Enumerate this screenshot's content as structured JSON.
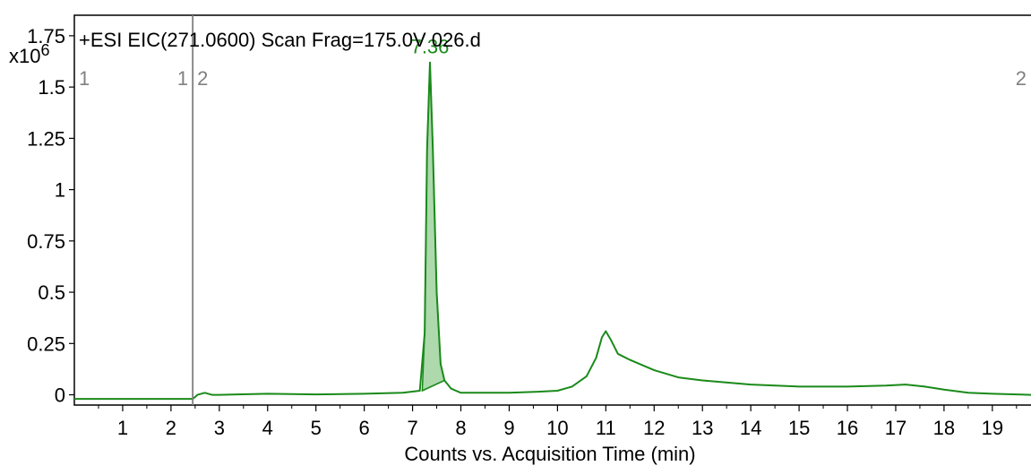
{
  "chart_data": {
    "type": "line",
    "title": "+ESI EIC(271.0600) Scan Frag=175.0V 026.d",
    "xlabel": "Counts vs. Acquisition Time (min)",
    "ylabel": "",
    "y_multiplier": "x10",
    "y_multiplier_exp": "6",
    "xlim": [
      0,
      19.8
    ],
    "ylim": [
      -0.05,
      1.85
    ],
    "x_ticks": [
      1,
      2,
      3,
      4,
      5,
      6,
      7,
      8,
      9,
      10,
      11,
      12,
      13,
      14,
      15,
      16,
      17,
      18,
      19
    ],
    "y_ticks": [
      0,
      0.25,
      0.5,
      0.75,
      1,
      1.25,
      1.5,
      1.75
    ],
    "x_tick_labels": [
      "1",
      "2",
      "3",
      "4",
      "5",
      "6",
      "7",
      "8",
      "9",
      "10",
      "11",
      "12",
      "13",
      "14",
      "15",
      "16",
      "17",
      "18",
      "19"
    ],
    "y_tick_labels": [
      "0",
      "0.25",
      "0.5",
      "0.75",
      "1",
      "1.25",
      "1.5",
      "1.75"
    ],
    "grid": false,
    "colors": {
      "trace": "#1a8a1a",
      "peak_fill": "#9fd29f",
      "peak_label": "#1a8a1a",
      "marker": "#808080"
    },
    "series": [
      {
        "x": [
          0,
          2.45,
          2.55,
          2.7,
          2.85,
          3.0,
          4.0,
          5.0,
          6.0,
          6.8,
          7.15,
          7.25,
          7.3,
          7.36,
          7.42,
          7.5,
          7.58,
          7.66,
          7.8,
          8.0,
          9.0,
          9.6,
          10.0,
          10.3,
          10.6,
          10.8,
          10.92,
          11.0,
          11.1,
          11.25,
          11.5,
          12.0,
          12.5,
          13.0,
          14.0,
          15.0,
          16.0,
          16.8,
          17.2,
          17.6,
          18.0,
          18.5,
          19.0,
          19.8
        ],
        "y": [
          -0.02,
          -0.02,
          0.0,
          0.01,
          0.0,
          0.0,
          0.005,
          0.002,
          0.005,
          0.01,
          0.02,
          0.3,
          1.2,
          1.62,
          1.2,
          0.5,
          0.15,
          0.07,
          0.03,
          0.01,
          0.01,
          0.015,
          0.02,
          0.04,
          0.09,
          0.18,
          0.28,
          0.31,
          0.27,
          0.2,
          0.17,
          0.12,
          0.085,
          0.07,
          0.05,
          0.04,
          0.04,
          0.045,
          0.05,
          0.04,
          0.025,
          0.01,
          0.005,
          0.0
        ]
      }
    ],
    "peak": {
      "rt": 7.36,
      "label": "7.36",
      "start": 7.2,
      "end": 7.66,
      "baseline_start": 0.02,
      "baseline_end": 0.07
    },
    "markers": [
      {
        "x": 0.0,
        "side": "right",
        "label": "1"
      },
      {
        "x": 2.45,
        "side": "left",
        "label": "1"
      },
      {
        "x": 2.45,
        "side": "right",
        "label": "2"
      },
      {
        "x": 19.8,
        "side": "left",
        "label": "2"
      }
    ]
  }
}
